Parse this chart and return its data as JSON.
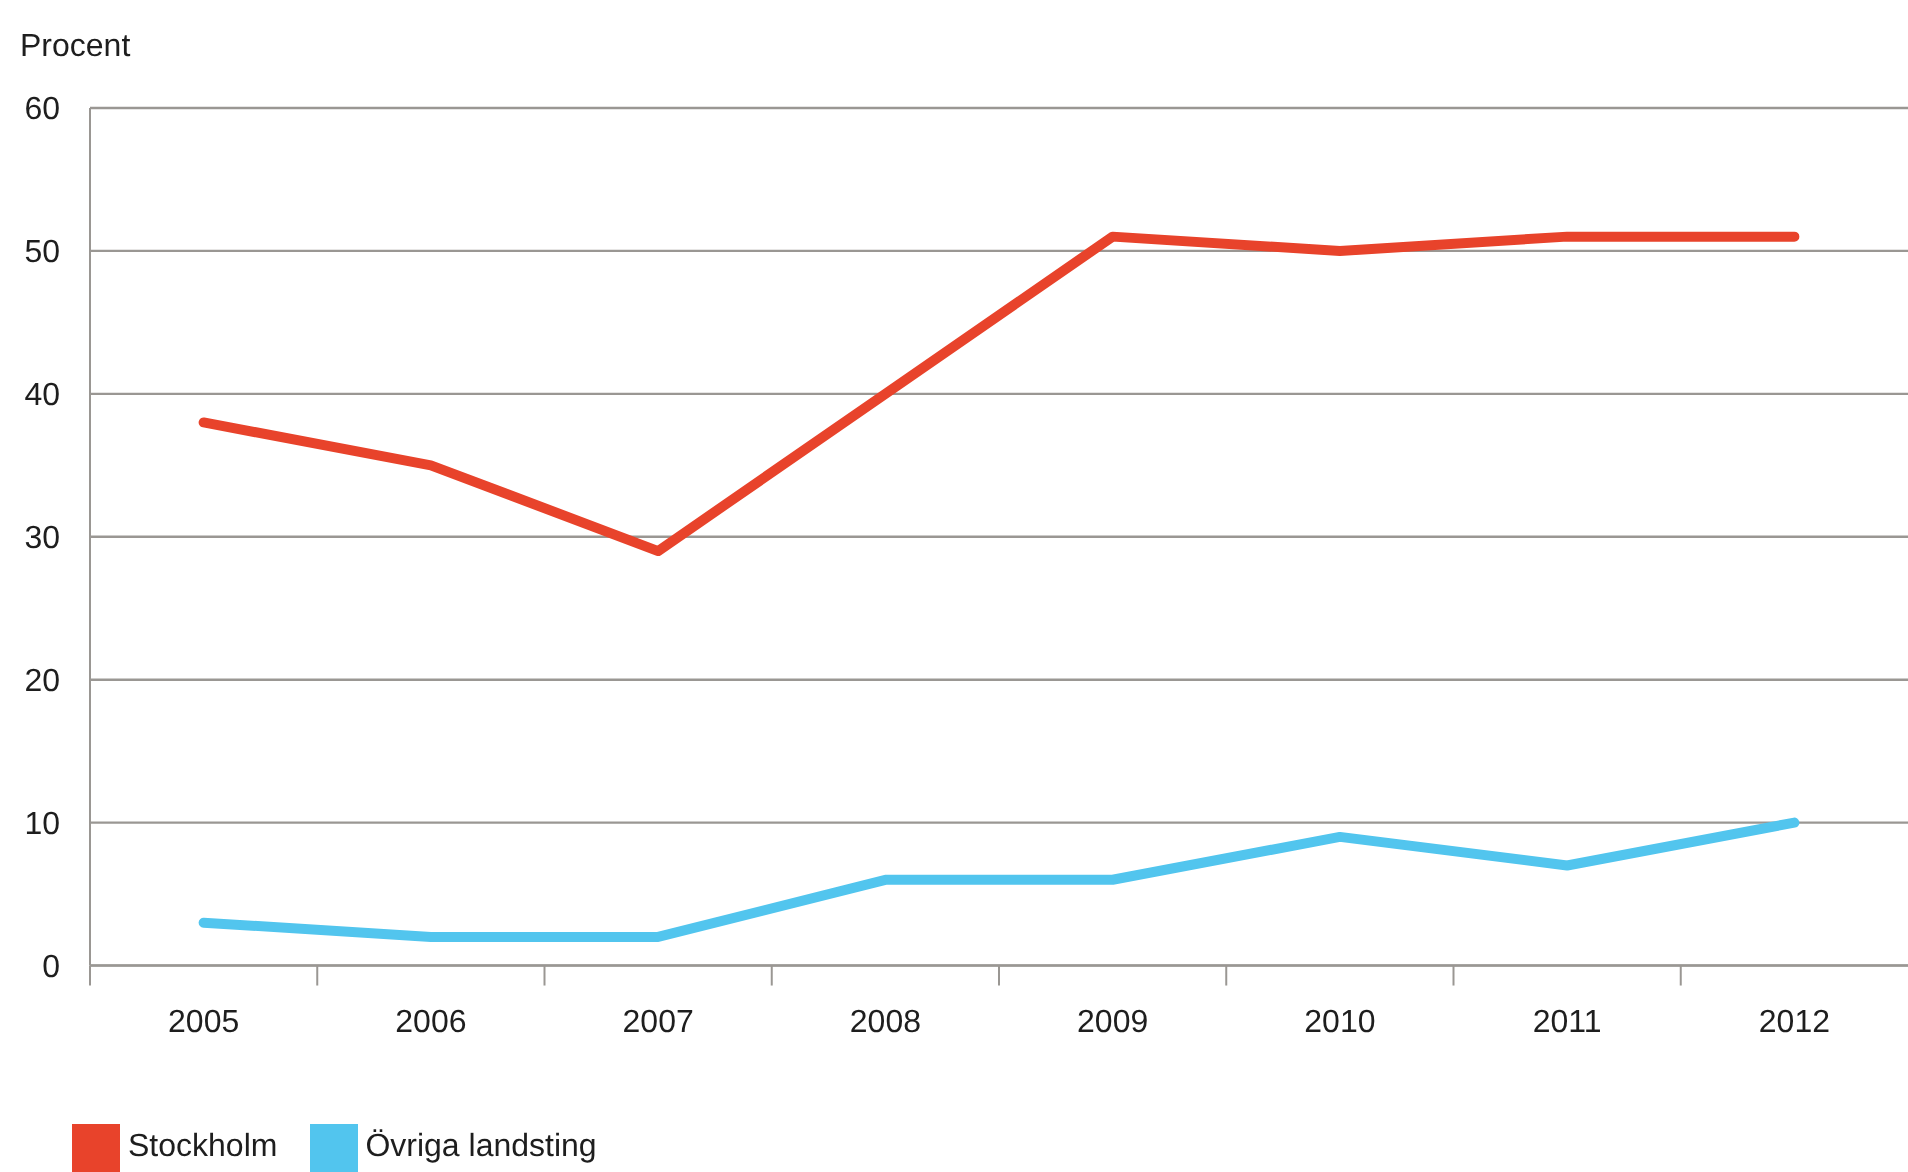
{
  "chart_data": {
    "type": "line",
    "ylabel": "Procent",
    "categories": [
      "2005",
      "2006",
      "2007",
      "2008",
      "2009",
      "2010",
      "2011",
      "2012"
    ],
    "series": [
      {
        "name": "Stockholm",
        "color": "#e8432b",
        "values": [
          38,
          35,
          29,
          40,
          51,
          50,
          51,
          51
        ]
      },
      {
        "name": "Övriga landsting",
        "color": "#52c5ee",
        "values": [
          3,
          2,
          2,
          6,
          6,
          9,
          7,
          10
        ]
      }
    ],
    "ylim": [
      0,
      60
    ],
    "yticks": [
      0,
      10,
      20,
      30,
      40,
      50,
      60
    ],
    "grid": "y",
    "legend": "bottom left",
    "marker": "none",
    "line_style": "solid"
  }
}
